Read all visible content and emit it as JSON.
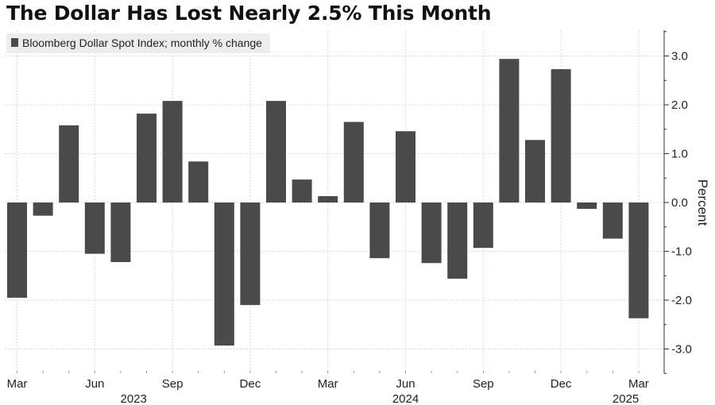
{
  "page_title": "The Dollar Has Lost Nearly 2.5% This Month",
  "chart_data": {
    "type": "bar",
    "title": "The Dollar Has Lost Nearly 2.5% This Month",
    "ylabel": "Percent",
    "xlabel": "",
    "ylim": [
      -3.5,
      3.5
    ],
    "yticks": [
      3.0,
      2.0,
      1.0,
      0.0,
      -1.0,
      -2.0,
      -3.0
    ],
    "ytick_labels": [
      "3.0",
      "2.0",
      "1.0",
      "0.0",
      "-1.0",
      "-2.0",
      "-3.0"
    ],
    "y_axis_side": "right",
    "grid": true,
    "legend": {
      "placement": "top-left",
      "entries": [
        {
          "label": "Bloomberg Dollar Spot Index; monthly % change",
          "color": "#4a4a4a"
        }
      ]
    },
    "bar_color": "#4a4a4a",
    "categories": [
      "2023-03",
      "2023-04",
      "2023-05",
      "2023-06",
      "2023-07",
      "2023-08",
      "2023-09",
      "2023-10",
      "2023-11",
      "2023-12",
      "2024-01",
      "2024-02",
      "2024-03",
      "2024-04",
      "2024-05",
      "2024-06",
      "2024-07",
      "2024-08",
      "2024-09",
      "2024-10",
      "2024-11",
      "2024-12",
      "2025-01",
      "2025-02",
      "2025-03"
    ],
    "values": [
      -1.95,
      -0.27,
      1.58,
      -1.05,
      -1.22,
      1.82,
      2.08,
      0.84,
      -2.93,
      -2.1,
      2.08,
      0.47,
      0.13,
      1.65,
      -1.14,
      1.46,
      -1.24,
      -1.56,
      -0.93,
      2.94,
      1.28,
      2.73,
      -0.13,
      -0.74,
      -2.37
    ],
    "x_tick_labels": [
      {
        "index": 0,
        "label": "Mar"
      },
      {
        "index": 3,
        "label": "Jun"
      },
      {
        "index": 6,
        "label": "Sep"
      },
      {
        "index": 9,
        "label": "Dec"
      },
      {
        "index": 12,
        "label": "Mar"
      },
      {
        "index": 15,
        "label": "Jun"
      },
      {
        "index": 18,
        "label": "Sep"
      },
      {
        "index": 21,
        "label": "Dec"
      },
      {
        "index": 24,
        "label": "Mar"
      }
    ],
    "year_labels": [
      {
        "index": 4.5,
        "label": "2023"
      },
      {
        "index": 15,
        "label": "2024"
      },
      {
        "index": 23.5,
        "label": "2025"
      }
    ]
  }
}
